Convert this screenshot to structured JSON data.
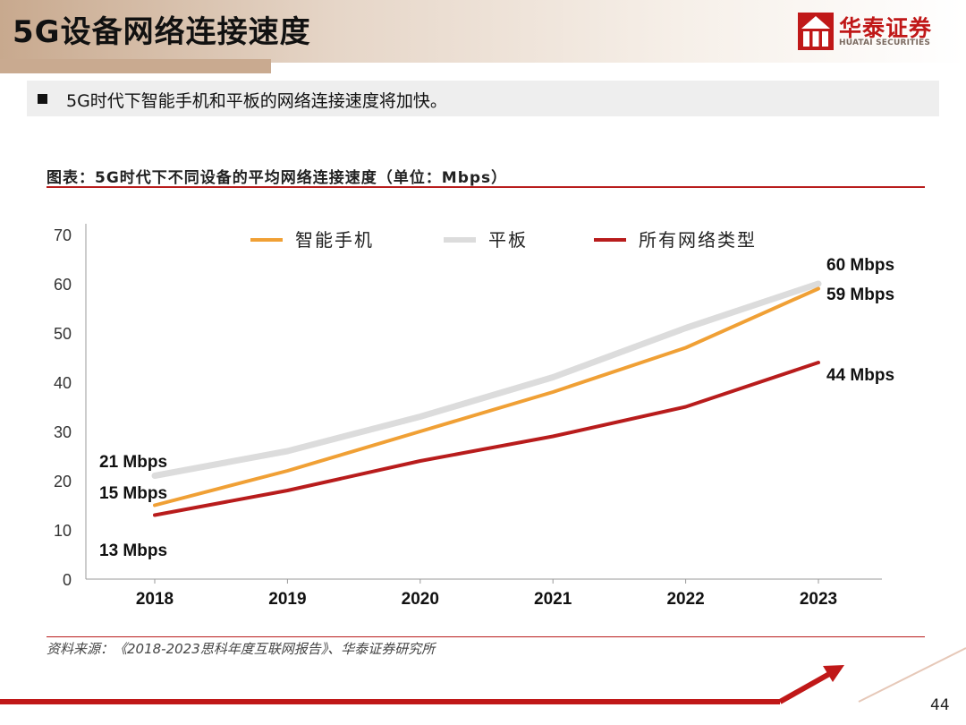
{
  "header": {
    "title": "5G设备网络连接速度",
    "logo_name": "华泰证券",
    "logo_en": "HUATAI SECURITIES",
    "logo_color": "#c01818"
  },
  "bullet": {
    "text": "5G时代下智能手机和平板的网络连接速度将加快。"
  },
  "chart_heading": "图表：5G时代下不同设备的平均网络连接速度（单位：Mbps）",
  "source": "资料来源：《2018-2023思科年度互联网报告》、华泰证券研究所",
  "page_number": "44",
  "chart_data": {
    "type": "line",
    "x": [
      "2018",
      "2019",
      "2020",
      "2021",
      "2022",
      "2023"
    ],
    "ylim": [
      0,
      70
    ],
    "yticks": [
      "0",
      "10",
      "20",
      "30",
      "40",
      "50",
      "60",
      "70"
    ],
    "legend_position": "top",
    "grid": false,
    "series": [
      {
        "name": "智能手机",
        "color": "#f0a035",
        "values": [
          15,
          22,
          30,
          38,
          47,
          59
        ]
      },
      {
        "name": "平板",
        "color": "#dcdcdc",
        "values": [
          21,
          26,
          33,
          41,
          51,
          60
        ]
      },
      {
        "name": "所有网络类型",
        "color": "#b81c1c",
        "values": [
          13,
          18,
          24,
          29,
          35,
          44
        ]
      }
    ],
    "annotations": [
      {
        "text": "21 Mbps",
        "series": "平板",
        "end": "start"
      },
      {
        "text": "15 Mbps",
        "series": "智能手机",
        "end": "start"
      },
      {
        "text": "13 Mbps",
        "series": "所有网络类型",
        "end": "start"
      },
      {
        "text": "60 Mbps",
        "series": "平板",
        "end": "end"
      },
      {
        "text": "59 Mbps",
        "series": "智能手机",
        "end": "end"
      },
      {
        "text": "44 Mbps",
        "series": "所有网络类型",
        "end": "end"
      }
    ]
  }
}
